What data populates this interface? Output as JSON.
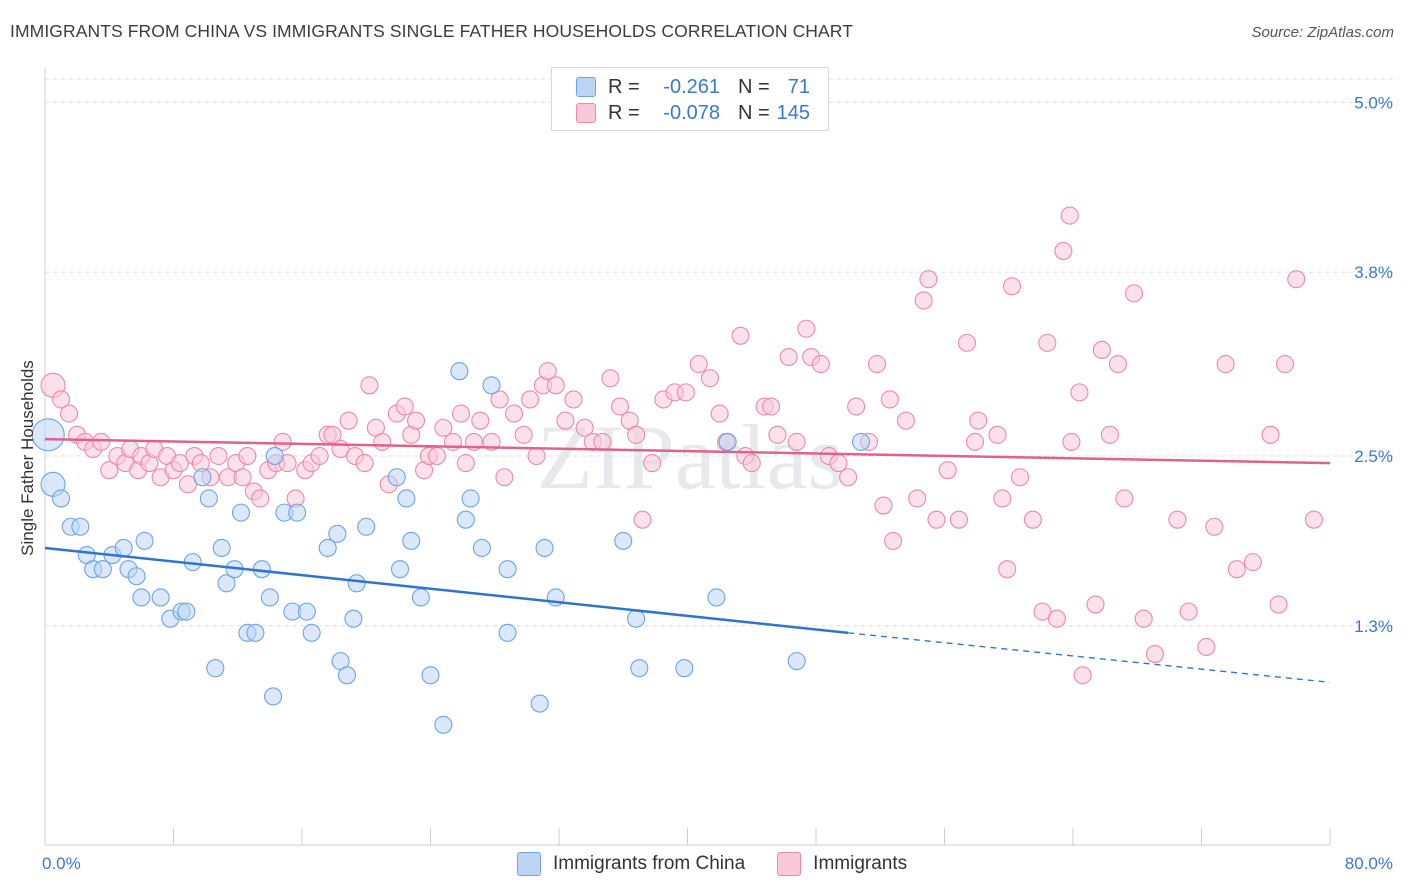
{
  "title": "IMMIGRANTS FROM CHINA VS IMMIGRANTS SINGLE FATHER HOUSEHOLDS CORRELATION CHART",
  "source": "Source: ZipAtlas.com",
  "watermark": "ZIPatlas",
  "colors": {
    "blue": "#6fa3e3",
    "blue_fill": "#bcd5f5",
    "blue_line": "#2f74d0",
    "pink": "#ec8aa8",
    "pink_fill": "#f9c9d8",
    "pink_line": "#e0628c",
    "axis_text": "#3a78d0"
  },
  "legend": {
    "rows": [
      {
        "r_label": "R =",
        "r_value": "-0.261",
        "n_label": "N =",
        "n_value": "71"
      },
      {
        "r_label": "R =",
        "r_value": "-0.078",
        "n_label": "N =",
        "n_value": "145"
      }
    ]
  },
  "bottom_legend": [
    "Immigrants from China",
    "Immigrants"
  ],
  "chart_data": {
    "type": "scatter",
    "title": "IMMIGRANTS FROM CHINA VS IMMIGRANTS SINGLE FATHER HOUSEHOLDS CORRELATION CHART",
    "xlabel": "",
    "ylabel": "Single Father Households",
    "xlim": [
      0,
      80
    ],
    "ylim": [
      -0.25,
      5.3
    ],
    "x_tick_labels": [
      {
        "value": 0,
        "label": "0.0%"
      },
      {
        "value": 80,
        "label": "80.0%"
      }
    ],
    "y_ticks": [
      {
        "value": 1.3,
        "label": "1.3%"
      },
      {
        "value": 2.5,
        "label": "2.5%"
      },
      {
        "value": 3.8,
        "label": "3.8%"
      },
      {
        "value": 5.0,
        "label": "5.0%"
      }
    ],
    "grid": "horizontal dashed",
    "legend_position": "top-center",
    "series": [
      {
        "name": "Immigrants from China",
        "color": "#6fa3e3",
        "trend": {
          "x": [
            0,
            50
          ],
          "y": [
            1.85,
            1.25
          ],
          "dashed_to": [
            80,
            0.9
          ]
        },
        "points": [
          [
            0.2,
            2.65,
            "L"
          ],
          [
            0.5,
            2.3,
            "M"
          ],
          [
            1.0,
            2.2
          ],
          [
            1.6,
            2.0
          ],
          [
            2.2,
            2.0
          ],
          [
            2.6,
            1.8
          ],
          [
            3.0,
            1.7
          ],
          [
            3.6,
            1.7
          ],
          [
            4.2,
            1.8
          ],
          [
            4.9,
            1.85
          ],
          [
            5.2,
            1.7
          ],
          [
            5.7,
            1.65
          ],
          [
            6.2,
            1.9
          ],
          [
            6.0,
            1.5
          ],
          [
            7.2,
            1.5
          ],
          [
            7.8,
            1.35
          ],
          [
            8.5,
            1.4
          ],
          [
            8.8,
            1.4
          ],
          [
            9.2,
            1.75
          ],
          [
            9.8,
            2.35
          ],
          [
            10.2,
            2.2
          ],
          [
            10.6,
            1.0
          ],
          [
            11.0,
            1.85
          ],
          [
            11.3,
            1.6
          ],
          [
            11.8,
            1.7
          ],
          [
            12.2,
            2.1
          ],
          [
            12.6,
            1.25
          ],
          [
            13.1,
            1.25
          ],
          [
            13.5,
            1.7
          ],
          [
            14.0,
            1.5
          ],
          [
            14.2,
            0.8
          ],
          [
            14.3,
            2.5
          ],
          [
            14.9,
            2.1
          ],
          [
            15.4,
            1.4
          ],
          [
            15.7,
            2.1
          ],
          [
            16.3,
            1.4
          ],
          [
            16.6,
            1.25
          ],
          [
            17.6,
            1.85
          ],
          [
            18.2,
            1.95
          ],
          [
            18.4,
            1.05
          ],
          [
            18.8,
            0.95
          ],
          [
            19.2,
            1.35
          ],
          [
            19.4,
            1.6
          ],
          [
            20.0,
            2.0
          ],
          [
            21.9,
            2.35
          ],
          [
            22.1,
            1.7
          ],
          [
            22.5,
            2.2
          ],
          [
            22.8,
            1.9
          ],
          [
            23.4,
            1.5
          ],
          [
            24.0,
            0.95
          ],
          [
            24.8,
            0.6
          ],
          [
            25.8,
            3.1
          ],
          [
            26.2,
            2.05
          ],
          [
            26.5,
            2.2
          ],
          [
            27.2,
            1.85
          ],
          [
            27.8,
            3.0
          ],
          [
            28.8,
            1.25
          ],
          [
            28.8,
            1.7
          ],
          [
            30.8,
            0.75
          ],
          [
            31.1,
            1.85
          ],
          [
            31.8,
            1.5
          ],
          [
            36.0,
            1.9
          ],
          [
            36.8,
            1.35
          ],
          [
            37.0,
            1.0
          ],
          [
            39.8,
            1.0
          ],
          [
            41.8,
            1.5
          ],
          [
            42.5,
            2.6
          ],
          [
            46.8,
            1.05
          ],
          [
            50.8,
            2.6
          ]
        ]
      },
      {
        "name": "Immigrants",
        "color": "#ec8aa8",
        "trend": {
          "x": [
            0,
            80
          ],
          "y": [
            2.62,
            2.45
          ]
        },
        "points": [
          [
            0.5,
            3.0,
            "M"
          ],
          [
            1.0,
            2.9
          ],
          [
            1.5,
            2.8
          ],
          [
            2.0,
            2.65
          ],
          [
            2.5,
            2.6
          ],
          [
            3.0,
            2.55
          ],
          [
            3.5,
            2.6
          ],
          [
            4.0,
            2.4
          ],
          [
            4.5,
            2.5
          ],
          [
            5.0,
            2.45
          ],
          [
            5.3,
            2.55
          ],
          [
            5.8,
            2.4
          ],
          [
            6.0,
            2.5
          ],
          [
            6.5,
            2.45
          ],
          [
            6.8,
            2.55
          ],
          [
            7.2,
            2.35
          ],
          [
            7.6,
            2.5
          ],
          [
            8.0,
            2.4
          ],
          [
            8.4,
            2.45
          ],
          [
            8.9,
            2.3
          ],
          [
            9.3,
            2.5
          ],
          [
            9.7,
            2.45
          ],
          [
            10.3,
            2.35
          ],
          [
            10.8,
            2.5
          ],
          [
            11.4,
            2.35
          ],
          [
            11.9,
            2.45
          ],
          [
            12.3,
            2.35
          ],
          [
            12.6,
            2.5
          ],
          [
            13.0,
            2.25
          ],
          [
            13.4,
            2.2
          ],
          [
            13.9,
            2.4
          ],
          [
            14.4,
            2.45
          ],
          [
            14.8,
            2.6
          ],
          [
            15.1,
            2.45
          ],
          [
            15.6,
            2.2
          ],
          [
            16.2,
            2.4
          ],
          [
            16.6,
            2.45
          ],
          [
            17.1,
            2.5
          ],
          [
            17.6,
            2.65
          ],
          [
            17.9,
            2.65
          ],
          [
            18.4,
            2.55
          ],
          [
            18.9,
            2.75
          ],
          [
            19.3,
            2.5
          ],
          [
            19.9,
            2.45
          ],
          [
            20.2,
            3.0
          ],
          [
            20.6,
            2.7
          ],
          [
            21.0,
            2.6
          ],
          [
            21.4,
            2.3
          ],
          [
            21.9,
            2.8
          ],
          [
            22.4,
            2.85
          ],
          [
            22.8,
            2.65
          ],
          [
            23.1,
            2.75
          ],
          [
            23.6,
            2.4
          ],
          [
            23.9,
            2.5
          ],
          [
            24.4,
            2.5
          ],
          [
            24.8,
            2.7
          ],
          [
            25.4,
            2.6
          ],
          [
            25.9,
            2.8
          ],
          [
            26.2,
            2.45
          ],
          [
            26.7,
            2.6
          ],
          [
            27.1,
            2.75
          ],
          [
            27.8,
            2.6
          ],
          [
            28.3,
            2.9
          ],
          [
            28.6,
            2.35
          ],
          [
            29.2,
            2.8
          ],
          [
            29.8,
            2.65
          ],
          [
            30.2,
            2.9
          ],
          [
            30.6,
            2.5
          ],
          [
            31.0,
            3.0
          ],
          [
            31.3,
            3.1
          ],
          [
            31.8,
            3.0
          ],
          [
            32.4,
            2.75
          ],
          [
            32.9,
            2.9
          ],
          [
            33.6,
            2.7
          ],
          [
            34.1,
            2.6
          ],
          [
            34.7,
            2.6
          ],
          [
            35.2,
            3.05
          ],
          [
            35.8,
            2.85
          ],
          [
            36.4,
            2.75
          ],
          [
            36.8,
            2.65
          ],
          [
            37.2,
            2.05
          ],
          [
            37.8,
            2.45
          ],
          [
            38.5,
            2.9
          ],
          [
            39.2,
            2.95
          ],
          [
            39.9,
            2.95
          ],
          [
            40.7,
            3.15
          ],
          [
            41.4,
            3.05
          ],
          [
            42.0,
            2.8
          ],
          [
            42.4,
            2.6
          ],
          [
            43.3,
            3.35
          ],
          [
            43.6,
            2.5
          ],
          [
            44.0,
            2.45
          ],
          [
            44.8,
            2.85
          ],
          [
            45.2,
            2.85
          ],
          [
            45.6,
            2.65
          ],
          [
            46.3,
            3.2
          ],
          [
            46.8,
            2.6
          ],
          [
            47.4,
            3.4
          ],
          [
            47.7,
            3.2
          ],
          [
            48.3,
            3.15
          ],
          [
            48.8,
            2.5
          ],
          [
            49.4,
            2.45
          ],
          [
            50.0,
            2.35
          ],
          [
            50.5,
            2.85
          ],
          [
            51.3,
            2.6
          ],
          [
            51.8,
            3.15
          ],
          [
            52.2,
            2.15
          ],
          [
            52.6,
            2.9
          ],
          [
            52.8,
            1.9
          ],
          [
            53.6,
            2.75
          ],
          [
            54.3,
            2.2
          ],
          [
            54.7,
            3.6
          ],
          [
            55.0,
            3.75
          ],
          [
            55.5,
            2.05
          ],
          [
            56.2,
            2.4
          ],
          [
            56.9,
            2.05
          ],
          [
            57.4,
            3.3
          ],
          [
            57.9,
            2.6
          ],
          [
            58.1,
            2.75
          ],
          [
            59.3,
            2.65
          ],
          [
            59.6,
            2.2
          ],
          [
            59.9,
            1.7
          ],
          [
            60.2,
            3.7
          ],
          [
            60.7,
            2.35
          ],
          [
            61.5,
            2.05
          ],
          [
            62.1,
            1.4
          ],
          [
            62.4,
            3.3
          ],
          [
            63.0,
            1.35
          ],
          [
            63.4,
            3.95
          ],
          [
            63.8,
            4.2
          ],
          [
            63.9,
            2.6
          ],
          [
            64.4,
            2.95
          ],
          [
            64.6,
            0.95
          ],
          [
            65.4,
            1.45
          ],
          [
            65.8,
            3.25
          ],
          [
            66.3,
            2.65
          ],
          [
            66.8,
            3.15
          ],
          [
            67.2,
            2.2
          ],
          [
            67.8,
            3.65
          ],
          [
            68.4,
            1.35
          ],
          [
            69.1,
            1.1
          ],
          [
            70.5,
            2.05
          ],
          [
            71.2,
            1.4
          ],
          [
            72.3,
            1.15
          ],
          [
            72.8,
            2.0
          ],
          [
            73.5,
            3.15
          ],
          [
            74.2,
            1.7
          ],
          [
            75.2,
            1.75
          ],
          [
            76.3,
            2.65
          ],
          [
            76.8,
            1.45
          ],
          [
            77.2,
            3.15
          ],
          [
            77.9,
            3.75
          ],
          [
            79.0,
            2.05
          ]
        ]
      }
    ]
  }
}
